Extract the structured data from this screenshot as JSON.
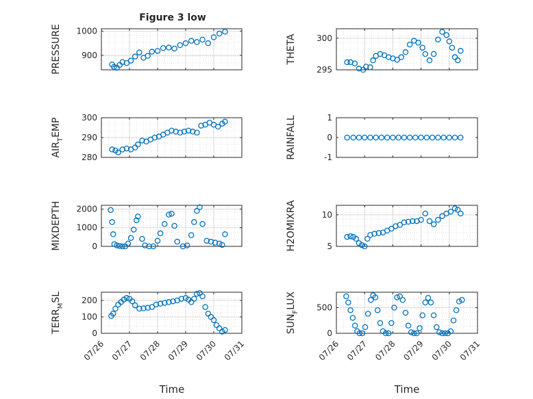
{
  "figure": {
    "title": "Figure 3 low",
    "xlabel": "Time",
    "xticklabels": [
      "07/26",
      "07/27",
      "07/28",
      "07/29",
      "07/30",
      "07/31"
    ],
    "marker_color": "#0072BD",
    "grid_color": "#d9d9d9"
  },
  "chart_data": [
    {
      "type": "scatter",
      "ylabel": "PRESSURE",
      "ylim": [
        840,
        1010
      ],
      "yticks": [
        900,
        1000
      ],
      "grid": true,
      "xlim": [
        0,
        5
      ],
      "series": [
        {
          "x": [
            0.38,
            0.45,
            0.55,
            0.65,
            0.75,
            0.9,
            1.05,
            1.2,
            1.35,
            1.5,
            1.65,
            1.8,
            2.0,
            2.2,
            2.4,
            2.6,
            2.8,
            3.0,
            3.2,
            3.4,
            3.6,
            3.8,
            4.0,
            4.2,
            4.4
          ],
          "values": [
            862,
            852,
            848,
            860,
            872,
            868,
            878,
            895,
            912,
            890,
            898,
            915,
            918,
            930,
            932,
            928,
            942,
            950,
            960,
            955,
            965,
            950,
            975,
            990,
            998
          ]
        }
      ]
    },
    {
      "type": "scatter",
      "ylabel": "THETA",
      "ylim": [
        295,
        301.5
      ],
      "yticks": [
        295,
        300
      ],
      "grid": true,
      "xlim": [
        0,
        5
      ],
      "series": [
        {
          "x": [
            0.38,
            0.5,
            0.65,
            0.8,
            0.95,
            1.05,
            1.2,
            1.3,
            1.4,
            1.55,
            1.7,
            1.85,
            2.0,
            2.15,
            2.3,
            2.45,
            2.6,
            2.75,
            2.9,
            3.05,
            3.15,
            3.3,
            3.45,
            3.6,
            3.75,
            3.9,
            4.0,
            4.1,
            4.2,
            4.3,
            4.4
          ],
          "values": [
            296.2,
            296.2,
            296.0,
            295.2,
            295.0,
            295.5,
            295.4,
            296.5,
            297.2,
            297.5,
            297.3,
            297.0,
            296.8,
            296.6,
            297.0,
            297.8,
            299.0,
            299.6,
            299.3,
            298.5,
            297.5,
            296.5,
            297.5,
            299.8,
            301.0,
            300.5,
            299.5,
            298.5,
            297.0,
            296.5,
            298.0
          ]
        }
      ]
    },
    {
      "type": "scatter",
      "ylabel": "AIR_TEMP",
      "ylim": [
        280,
        300
      ],
      "yticks": [
        280,
        290,
        300
      ],
      "grid": true,
      "xlim": [
        0,
        5
      ],
      "series": [
        {
          "x": [
            0.38,
            0.5,
            0.6,
            0.75,
            0.9,
            1.05,
            1.2,
            1.3,
            1.45,
            1.6,
            1.75,
            1.9,
            2.05,
            2.2,
            2.35,
            2.5,
            2.65,
            2.8,
            2.95,
            3.1,
            3.25,
            3.4,
            3.55,
            3.7,
            3.85,
            4.0,
            4.15,
            4.3,
            4.4
          ],
          "values": [
            284,
            283.5,
            282.5,
            284.0,
            284.5,
            284.0,
            285.0,
            286.5,
            288.5,
            288.0,
            289.0,
            290.0,
            290.5,
            291.5,
            292.5,
            293.5,
            293.0,
            292.5,
            293.0,
            293.5,
            293.0,
            292.5,
            296.0,
            296.5,
            297.5,
            296.5,
            295.5,
            297.0,
            298.0
          ]
        }
      ]
    },
    {
      "type": "scatter",
      "ylabel": "RAINFALL",
      "ylim": [
        -1,
        1
      ],
      "yticks": [
        -1,
        0,
        1
      ],
      "grid": false,
      "xlim": [
        0,
        5
      ],
      "series": [
        {
          "x": [
            0.38,
            0.6,
            0.8,
            1.0,
            1.2,
            1.4,
            1.6,
            1.8,
            2.0,
            2.2,
            2.4,
            2.6,
            2.8,
            3.0,
            3.2,
            3.4,
            3.6,
            3.8,
            4.0,
            4.2,
            4.4
          ],
          "values": [
            0,
            0,
            0,
            0,
            0,
            0,
            0,
            0,
            0,
            0,
            0,
            0,
            0,
            0,
            0,
            0,
            0,
            0,
            0,
            0,
            0
          ]
        }
      ]
    },
    {
      "type": "scatter",
      "ylabel": "MIXDEPTH",
      "ylim": [
        0,
        2200
      ],
      "yticks": [
        0,
        1000,
        2000
      ],
      "grid": true,
      "xlim": [
        0,
        5
      ],
      "series": [
        {
          "x": [
            0.33,
            0.38,
            0.42,
            0.46,
            0.55,
            0.65,
            0.75,
            0.85,
            0.95,
            1.05,
            1.15,
            1.25,
            1.3,
            1.45,
            1.55,
            1.7,
            1.85,
            2.0,
            2.1,
            2.25,
            2.4,
            2.5,
            2.6,
            2.7,
            2.9,
            3.05,
            3.2,
            3.3,
            3.4,
            3.5,
            3.6,
            3.75,
            3.9,
            4.05,
            4.2,
            4.3,
            4.4
          ],
          "values": [
            1950,
            1300,
            650,
            120,
            50,
            20,
            0,
            0,
            150,
            450,
            900,
            1400,
            1600,
            400,
            50,
            0,
            0,
            300,
            700,
            1200,
            1700,
            1750,
            1100,
            250,
            0,
            50,
            600,
            1300,
            1900,
            2100,
            1200,
            300,
            250,
            200,
            150,
            80,
            650
          ]
        }
      ]
    },
    {
      "type": "scatter",
      "ylabel": "H2OMIXRA",
      "ylim": [
        5,
        11.5
      ],
      "yticks": [
        5,
        10
      ],
      "grid": true,
      "xlim": [
        0,
        5
      ],
      "series": [
        {
          "x": [
            0.38,
            0.5,
            0.6,
            0.7,
            0.8,
            0.9,
            1.0,
            1.1,
            1.2,
            1.35,
            1.5,
            1.65,
            1.8,
            1.95,
            2.1,
            2.25,
            2.4,
            2.55,
            2.7,
            2.85,
            3.0,
            3.15,
            3.3,
            3.45,
            3.6,
            3.75,
            3.9,
            4.05,
            4.2,
            4.3,
            4.4
          ],
          "values": [
            6.5,
            6.6,
            6.5,
            6.2,
            5.5,
            5.2,
            5.0,
            6.2,
            6.8,
            7.0,
            7.1,
            7.2,
            7.5,
            7.8,
            8.2,
            8.4,
            8.8,
            8.9,
            9.0,
            9.0,
            9.2,
            10.2,
            9.0,
            8.5,
            9.2,
            9.8,
            10.2,
            10.5,
            11.0,
            10.8,
            10.2
          ]
        }
      ]
    },
    {
      "type": "scatter",
      "ylabel": "TERR_MSL",
      "ylim": [
        0,
        250
      ],
      "yticks": [
        0,
        100,
        200
      ],
      "grid": true,
      "xlim": [
        0,
        5
      ],
      "series": [
        {
          "x": [
            0.35,
            0.42,
            0.5,
            0.6,
            0.7,
            0.8,
            0.9,
            1.0,
            1.1,
            1.2,
            1.35,
            1.5,
            1.65,
            1.8,
            1.95,
            2.1,
            2.25,
            2.4,
            2.55,
            2.7,
            2.85,
            3.0,
            3.1,
            3.2,
            3.3,
            3.4,
            3.5,
            3.6,
            3.7,
            3.8,
            3.9,
            4.0,
            4.1,
            4.2,
            4.3,
            4.4
          ],
          "values": [
            105,
            120,
            150,
            175,
            190,
            205,
            215,
            210,
            195,
            170,
            150,
            152,
            155,
            160,
            175,
            180,
            185,
            190,
            195,
            200,
            210,
            215,
            205,
            190,
            210,
            240,
            245,
            225,
            160,
            120,
            100,
            80,
            50,
            30,
            10,
            20
          ]
        }
      ]
    },
    {
      "type": "scatter",
      "ylabel": "SUN_FLUX",
      "ylim": [
        0,
        800
      ],
      "yticks": [
        0,
        500
      ],
      "grid": true,
      "xlim": [
        0,
        5
      ],
      "series": [
        {
          "x": [
            0.35,
            0.42,
            0.5,
            0.58,
            0.66,
            0.74,
            0.82,
            0.92,
            1.02,
            1.12,
            1.22,
            1.3,
            1.38,
            1.46,
            1.55,
            1.65,
            1.75,
            1.85,
            1.95,
            2.05,
            2.15,
            2.25,
            2.35,
            2.45,
            2.55,
            2.65,
            2.75,
            2.85,
            2.95,
            3.05,
            3.15,
            3.25,
            3.35,
            3.45,
            3.55,
            3.65,
            3.75,
            3.85,
            3.95,
            4.05,
            4.15,
            4.25,
            4.35,
            4.45
          ],
          "values": [
            720,
            600,
            450,
            300,
            150,
            40,
            0,
            0,
            120,
            380,
            650,
            740,
            700,
            450,
            200,
            40,
            0,
            0,
            200,
            500,
            700,
            720,
            650,
            400,
            150,
            20,
            0,
            0,
            100,
            350,
            600,
            690,
            600,
            350,
            120,
            20,
            0,
            0,
            0,
            40,
            250,
            450,
            620,
            650
          ]
        }
      ]
    }
  ]
}
